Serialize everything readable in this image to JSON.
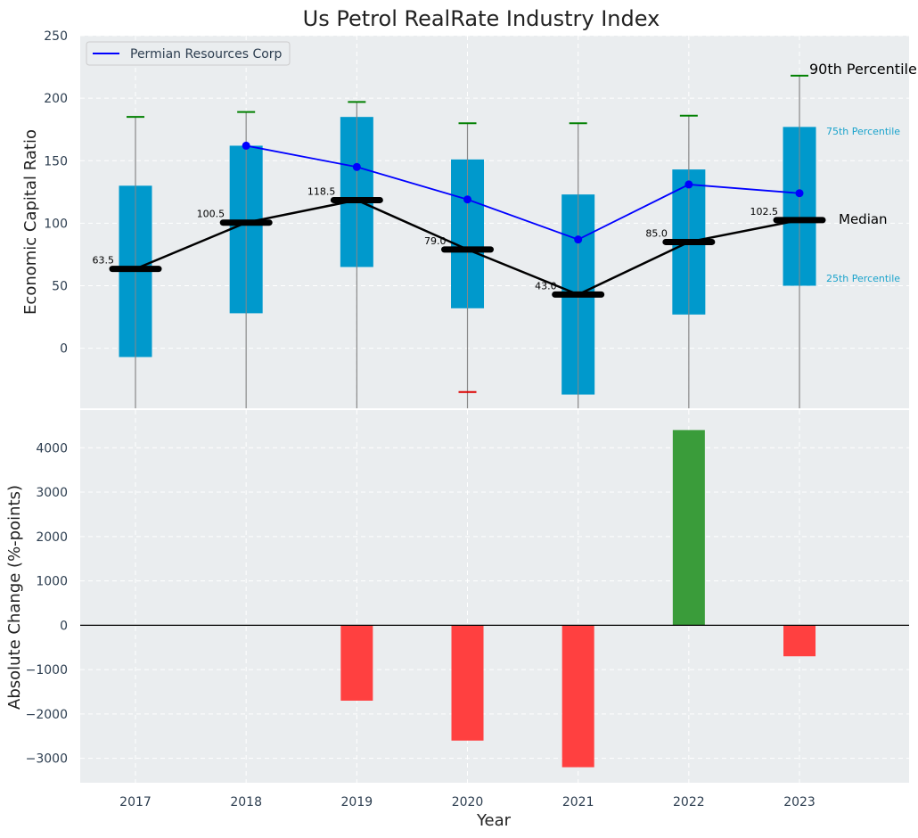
{
  "chart_data": [
    {
      "type": "box",
      "title": "Us Petrol RealRate Industry Index",
      "xlabel": "",
      "ylabel": "Economic Capital Ratio",
      "ylim": [
        -48,
        250
      ],
      "yticks": [
        0,
        50,
        100,
        150,
        200,
        250
      ],
      "categories": [
        "2017",
        "2018",
        "2019",
        "2020",
        "2021",
        "2022",
        "2023"
      ],
      "boxes": [
        {
          "year": "2017",
          "p10": null,
          "p25": -7,
          "median": 63.5,
          "p75": 130,
          "p90": 185,
          "median_label": "63.5"
        },
        {
          "year": "2018",
          "p10": null,
          "p25": 28,
          "median": 100.5,
          "p75": 162,
          "p90": 189,
          "median_label": "100.5"
        },
        {
          "year": "2019",
          "p10": null,
          "p25": 65,
          "median": 118.5,
          "p75": 185,
          "p90": 197,
          "median_label": "118.5"
        },
        {
          "year": "2020",
          "p10": -35,
          "p25": 32,
          "median": 79.0,
          "p75": 151,
          "p90": 180,
          "median_label": "79.0"
        },
        {
          "year": "2021",
          "p10": null,
          "p25": -37,
          "median": 43.0,
          "p75": 123,
          "p90": 180,
          "median_label": "43.0"
        },
        {
          "year": "2022",
          "p10": null,
          "p25": 27,
          "median": 85.0,
          "p75": 143,
          "p90": 186,
          "median_label": "85.0"
        },
        {
          "year": "2023",
          "p10": null,
          "p25": 50,
          "median": 102.5,
          "p75": 177,
          "p90": 218,
          "median_label": "102.5"
        }
      ],
      "series": [
        {
          "name": "Permian Resources Corp",
          "color": "#0000ff",
          "x": [
            "2018",
            "2019",
            "2020",
            "2021",
            "2022",
            "2023"
          ],
          "values": [
            162,
            145,
            119,
            87,
            131,
            124
          ]
        }
      ],
      "annotations": {
        "p90": "90th Percentile",
        "p75": "75th Percentile",
        "median": "Median",
        "p25": "25th Percentile"
      },
      "legend": "top-left",
      "grid": true
    },
    {
      "type": "bar",
      "title": "",
      "xlabel": "Year",
      "ylabel": "Absolute Change (%-points)",
      "ylim": [
        -3550,
        4850
      ],
      "yticks": [
        -3000,
        -2000,
        -1000,
        0,
        1000,
        2000,
        3000,
        4000
      ],
      "categories": [
        "2017",
        "2018",
        "2019",
        "2020",
        "2021",
        "2022",
        "2023"
      ],
      "values": [
        0,
        0,
        -1700,
        -2600,
        -3200,
        4400,
        -700
      ],
      "grid": true
    }
  ],
  "colors": {
    "box": "#0099cc",
    "median": "#000000",
    "whisker_high": "#008000",
    "whisker_low": "#dd0000",
    "stem": "#888888",
    "series": "#0000ff",
    "positive": "#3a9c3a",
    "negative": "#ff4040",
    "panel_bg": "#eaedef",
    "grid": "#ffffff",
    "annotation_quartile": "#1aa3cc"
  }
}
